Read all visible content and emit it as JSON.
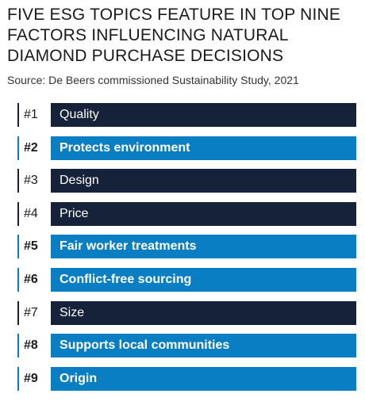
{
  "title_lines": [
    "FIVE ESG TOPICS FEATURE IN TOP NINE",
    "FACTORS INFLUENCING NATURAL",
    "DIAMOND PURCHASE DECISIONS"
  ],
  "source": "Source: De Beers commissioned Sustainability Study, 2021",
  "colors": {
    "esg": "#0a7ec2",
    "other": "#16213a",
    "esg_rule": "#0a7ec2",
    "other_rule": "#16213a"
  },
  "chart_data": {
    "type": "table",
    "rows": [
      {
        "rank": "#1",
        "label": "Quality",
        "esg": false
      },
      {
        "rank": "#2",
        "label": "Protects environment",
        "esg": true
      },
      {
        "rank": "#3",
        "label": "Design",
        "esg": false
      },
      {
        "rank": "#4",
        "label": "Price",
        "esg": false
      },
      {
        "rank": "#5",
        "label": "Fair worker treatments",
        "esg": true
      },
      {
        "rank": "#6",
        "label": "Conflict-free sourcing",
        "esg": true
      },
      {
        "rank": "#7",
        "label": "Size",
        "esg": false
      },
      {
        "rank": "#8",
        "label": "Supports local communities",
        "esg": true
      },
      {
        "rank": "#9",
        "label": "Origin",
        "esg": true
      }
    ]
  }
}
